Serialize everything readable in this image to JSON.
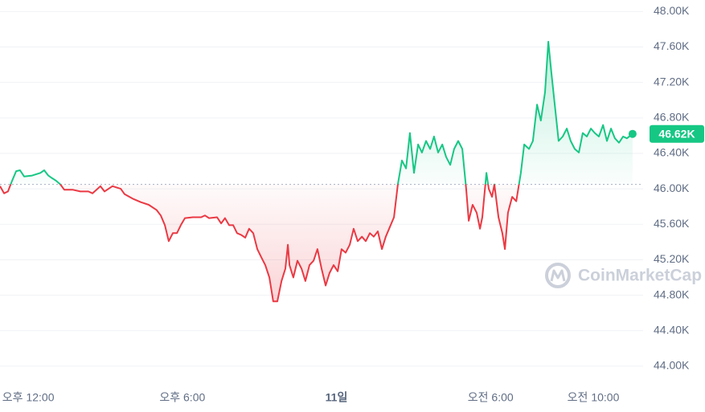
{
  "chart_data": {
    "type": "line",
    "x": [
      -1.1,
      -0.94,
      -0.79,
      -0.63,
      -0.47,
      -0.32,
      -0.16,
      0.15,
      0.47,
      0.62,
      0.78,
      0.93,
      1.09,
      1.25,
      1.4,
      1.72,
      2.03,
      2.34,
      2.5,
      2.66,
      2.81,
      2.97,
      3.28,
      3.6,
      3.75,
      4.06,
      4.38,
      4.69,
      5.0,
      5.16,
      5.32,
      5.47,
      5.63,
      5.79,
      5.94,
      6.1,
      6.41,
      6.73,
      6.88,
      7.04,
      7.35,
      7.51,
      7.66,
      7.82,
      7.98,
      8.13,
      8.29,
      8.45,
      8.6,
      8.76,
      8.92,
      9.07,
      9.23,
      9.39,
      9.54,
      9.7,
      9.86,
      10.01,
      10.11,
      10.17,
      10.32,
      10.48,
      10.64,
      10.79,
      10.95,
      11.11,
      11.26,
      11.42,
      11.58,
      11.73,
      11.89,
      12.05,
      12.2,
      12.36,
      12.52,
      12.67,
      12.83,
      12.99,
      13.14,
      13.3,
      13.45,
      13.61,
      13.77,
      13.92,
      14.24,
      14.39,
      14.55,
      14.71,
      14.86,
      15.02,
      15.18,
      15.33,
      15.49,
      15.65,
      15.8,
      15.96,
      16.12,
      16.27,
      16.43,
      16.58,
      16.74,
      16.9,
      17.05,
      17.15,
      17.3,
      17.46,
      17.59,
      17.68,
      17.84,
      17.93,
      18.06,
      18.15,
      18.31,
      18.46,
      18.56,
      18.68,
      18.84,
      19.0,
      19.18,
      19.31,
      19.5,
      19.65,
      19.81,
      19.96,
      20.12,
      20.25,
      20.37,
      20.5,
      20.65,
      20.81,
      20.97,
      21.12,
      21.28,
      21.44,
      21.59,
      21.75,
      21.91,
      22.06,
      22.22,
      22.38,
      22.53,
      22.69,
      22.84,
      23.0,
      23.16,
      23.31,
      23.53
    ],
    "values": [
      46030,
      45950,
      45970,
      46090,
      46200,
      46210,
      46140,
      46150,
      46180,
      46210,
      46150,
      46120,
      46090,
      46050,
      45990,
      45990,
      45970,
      45970,
      45950,
      45990,
      46030,
      45970,
      46030,
      46000,
      45940,
      45890,
      45850,
      45820,
      45760,
      45700,
      45590,
      45410,
      45500,
      45500,
      45590,
      45670,
      45680,
      45680,
      45700,
      45670,
      45680,
      45610,
      45670,
      45590,
      45590,
      45500,
      45480,
      45450,
      45550,
      45500,
      45320,
      45230,
      45140,
      45000,
      44730,
      44730,
      44960,
      45100,
      45370,
      45140,
      45000,
      45190,
      45100,
      44960,
      45140,
      45190,
      45320,
      45100,
      44910,
      45050,
      45140,
      45070,
      45320,
      45280,
      45370,
      45550,
      45410,
      45460,
      45410,
      45500,
      45460,
      45520,
      45320,
      45460,
      45680,
      46050,
      46320,
      46230,
      46630,
      46180,
      46500,
      46410,
      46540,
      46450,
      46590,
      46410,
      46500,
      46360,
      46270,
      46450,
      46540,
      46450,
      46000,
      45640,
      45820,
      45730,
      45550,
      45680,
      46180,
      46000,
      45910,
      46050,
      45680,
      45500,
      45320,
      45730,
      45910,
      45860,
      46180,
      46500,
      46450,
      46540,
      46950,
      46770,
      47090,
      47660,
      47310,
      46950,
      46540,
      46590,
      46680,
      46540,
      46450,
      46410,
      46630,
      46590,
      46680,
      46630,
      46590,
      46720,
      46540,
      46680,
      46570,
      46520,
      46590,
      46570,
      46620
    ],
    "xlim": [
      -1.1,
      23.94
    ],
    "ylim": [
      43800,
      48130
    ],
    "xticks": [
      {
        "value": 0,
        "label": "오후 12:00"
      },
      {
        "value": 6,
        "label": "오후 6:00"
      },
      {
        "value": 12,
        "label": "11일"
      },
      {
        "value": 18,
        "label": "오전 6:00"
      },
      {
        "value": 22,
        "label": "오전 10:00"
      }
    ],
    "yticks": [
      {
        "value": 44000,
        "label": "44.00K"
      },
      {
        "value": 44400,
        "label": "44.40K"
      },
      {
        "value": 44800,
        "label": "44.80K"
      },
      {
        "value": 45200,
        "label": "45.20K"
      },
      {
        "value": 45600,
        "label": "45.60K"
      },
      {
        "value": 46000,
        "label": "46.00K"
      },
      {
        "value": 46400,
        "label": "46.40K"
      },
      {
        "value": 46800,
        "label": "46.80K"
      },
      {
        "value": 47200,
        "label": "47.20K"
      },
      {
        "value": 47600,
        "label": "47.60K"
      },
      {
        "value": 48000,
        "label": "48.00K"
      }
    ],
    "baseline": 46050,
    "up_color": "#16c784",
    "down_color": "#ea3943",
    "grid": true,
    "current_label": {
      "value": 46620,
      "label": "46.62K"
    },
    "watermark": "CoinMarketCap"
  }
}
